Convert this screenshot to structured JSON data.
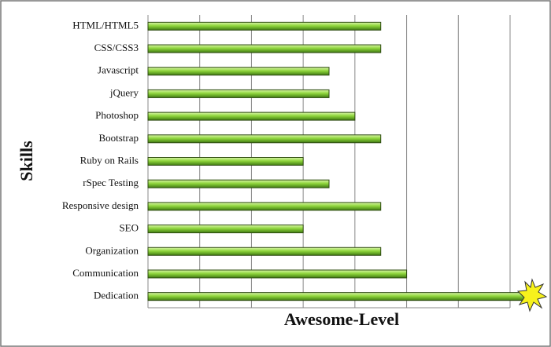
{
  "chart_data": {
    "type": "barh",
    "x_label": "Awesome-Level",
    "y_label": "Skills",
    "categories": [
      "HTML/HTML5",
      "CSS/CSS3",
      "Javascript",
      "jQuery",
      "Photoshop",
      "Bootstrap",
      "Ruby on Rails",
      "rSpec Testing",
      "Responsive design",
      "SEO",
      "Organization",
      "Communication",
      "Dedication"
    ],
    "values": [
      4.5,
      4.5,
      3.5,
      3.5,
      4,
      4.5,
      3,
      3.5,
      4.5,
      3,
      4.5,
      5,
      7.3
    ],
    "color": "#7ec832",
    "xlim": [
      0,
      7
    ],
    "xticks": [
      0,
      1,
      2,
      3,
      4,
      5,
      6,
      7
    ],
    "grid": true
  }
}
